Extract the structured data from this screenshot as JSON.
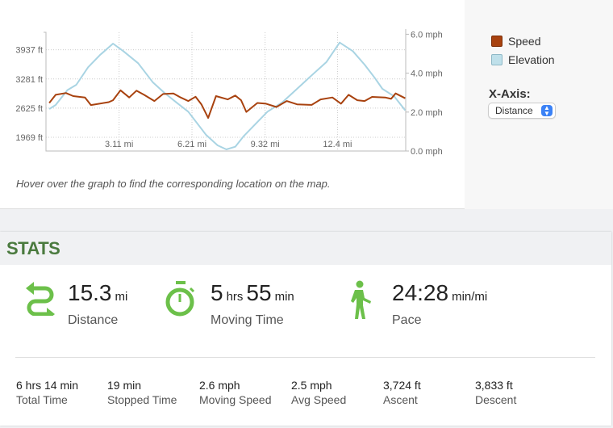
{
  "chart_data": {
    "type": "line",
    "xlabel": "Distance",
    "x_ticks": [
      "3.11 mi",
      "6.21 mi",
      "9.32 mi",
      "12.4 mi"
    ],
    "x_tick_values": [
      3.11,
      6.21,
      9.32,
      12.4
    ],
    "xlim": [
      0,
      15.3
    ],
    "y_left": {
      "label": "Elevation",
      "ticks": [
        "1969 ft",
        "2625 ft",
        "3281 ft",
        "3937 ft"
      ],
      "tick_values": [
        1969,
        2625,
        3281,
        3937
      ],
      "ylim": [
        1660,
        4330
      ]
    },
    "y_right": {
      "label": "Speed",
      "ticks": [
        "0.0 mph",
        "2.0 mph",
        "4.0 mph",
        "6.0 mph"
      ],
      "tick_values": [
        0,
        2,
        4,
        6
      ],
      "ylim": [
        0,
        6.1
      ]
    },
    "grid": true,
    "series": [
      {
        "name": "Speed",
        "axis": "right",
        "color": "#a8420f",
        "x": [
          0.14,
          0.41,
          0.85,
          1.16,
          1.66,
          1.91,
          2.67,
          2.85,
          3.17,
          3.54,
          3.85,
          4.17,
          4.61,
          4.98,
          5.42,
          5.73,
          6.05,
          6.36,
          6.61,
          6.9,
          7.23,
          7.73,
          8.05,
          8.3,
          8.52,
          8.99,
          9.36,
          9.8,
          10.24,
          10.68,
          11.3,
          11.68,
          12.18,
          12.55,
          12.87,
          13.24,
          13.55,
          13.87,
          14.43,
          14.68,
          14.87,
          15.28
        ],
        "y": [
          2.47,
          2.89,
          2.98,
          2.82,
          2.75,
          2.36,
          2.51,
          2.61,
          3.12,
          2.75,
          3.1,
          2.89,
          2.57,
          2.93,
          2.96,
          2.75,
          2.57,
          2.79,
          2.4,
          1.7,
          2.82,
          2.65,
          2.85,
          2.61,
          2.01,
          2.47,
          2.43,
          2.26,
          2.57,
          2.4,
          2.37,
          2.65,
          2.75,
          2.43,
          2.89,
          2.61,
          2.57,
          2.78,
          2.75,
          2.68,
          2.96,
          2.71
        ]
      },
      {
        "name": "Elevation",
        "axis": "left",
        "color": "#a9d4e3",
        "x": [
          0.14,
          0.41,
          0.91,
          1.29,
          1.79,
          2.29,
          2.85,
          3.29,
          3.92,
          4.54,
          5.04,
          5.54,
          6.05,
          6.8,
          7.3,
          7.67,
          8.05,
          8.42,
          8.92,
          9.42,
          10.05,
          10.68,
          11.3,
          11.93,
          12.49,
          13.05,
          13.55,
          13.99,
          14.31,
          14.81,
          15.28
        ],
        "y": [
          2605,
          2696,
          3029,
          3150,
          3543,
          3816,
          4076,
          3907,
          3634,
          3210,
          2968,
          2756,
          2544,
          2029,
          1787,
          1696,
          1757,
          1999,
          2272,
          2544,
          2756,
          3059,
          3362,
          3664,
          4100,
          3907,
          3604,
          3301,
          3059,
          2890,
          2575
        ]
      }
    ]
  },
  "legend": [
    {
      "label": "Speed",
      "color": "#a8420f",
      "border": "#7a2e08"
    },
    {
      "label": "Elevation",
      "color": "#bfe0ea",
      "border": "#8fb8c6"
    }
  ],
  "xaxis": {
    "label": "X-Axis:",
    "selected": "Distance"
  },
  "hint": "Hover over the graph to find the corresponding location on the map.",
  "stats": {
    "title": "STATS",
    "distance": {
      "value": "15.3",
      "unit": "mi",
      "label": "Distance"
    },
    "moving_time": {
      "h": "5",
      "h_unit": "hrs",
      "m": "55",
      "m_unit": "min",
      "label": "Moving Time"
    },
    "pace": {
      "value": "24:28",
      "unit": "min/mi",
      "label": "Pace"
    },
    "small": [
      {
        "value": "6 hrs 14 min",
        "label": "Total Time"
      },
      {
        "value": "19 min",
        "label": "Stopped Time"
      },
      {
        "value": "2.6 mph",
        "label": "Moving Speed"
      },
      {
        "value": "2.5 mph",
        "label": "Avg Speed"
      },
      {
        "value": "3,724 ft",
        "label": "Ascent"
      },
      {
        "value": "3,833 ft",
        "label": "Descent"
      }
    ]
  }
}
